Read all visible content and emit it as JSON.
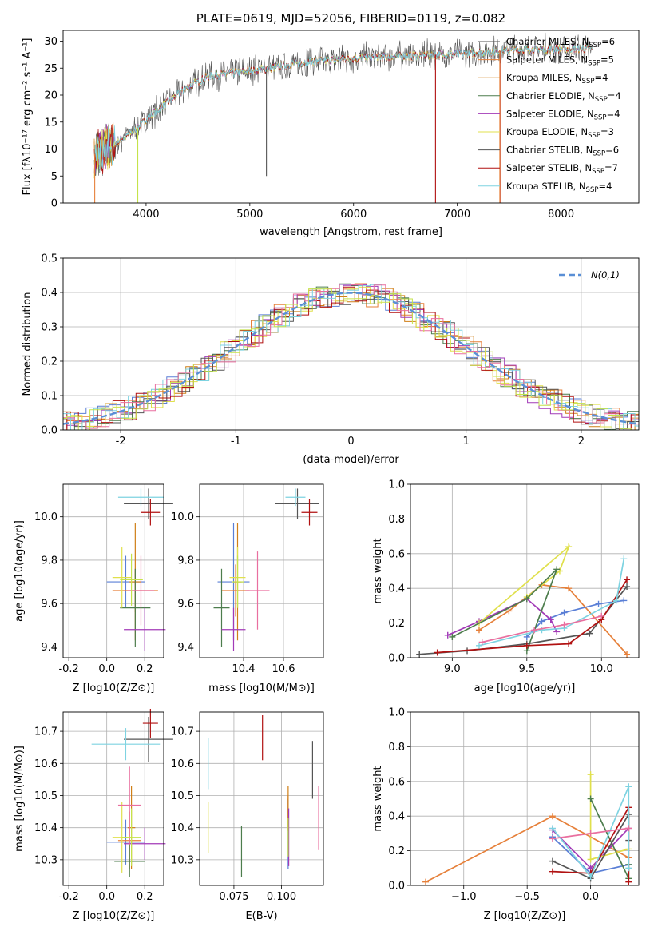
{
  "colors": [
    "#5a7fd6",
    "#e6803a",
    "#d07f17",
    "#4d7d4d",
    "#a23ab7",
    "#e0e04c",
    "#555555",
    "#b11111",
    "#7ed3e1",
    "#e96f9f",
    "#c5e34a"
  ],
  "chart_data": [
    {
      "type": "line",
      "title": "PLATE=0619, MJD=52056, FIBERID=0119, z=0.082",
      "xlabel": "wavelength [Angstrom, rest frame]",
      "ylabel": "Flux [fλ10⁻¹⁷ erg cm⁻² s⁻¹ A⁻¹]",
      "xlim": [
        3200,
        8750
      ],
      "ylim": [
        0,
        32
      ],
      "xticks": [
        4000,
        5000,
        6000,
        7000,
        8000
      ],
      "yticks": [
        0,
        5,
        10,
        15,
        20,
        25,
        30
      ],
      "legend_position": "top-right",
      "legend": [
        "Chabrier MILES, N_SSP=6",
        "Salpeter MILES, N_SSP=5",
        "Kroupa MILES, N_SSP=4",
        "Chabrier ELODIE, N_SSP=4",
        "Salpeter ELODIE, N_SSP=4",
        "Kroupa ELODIE, N_SSP=3",
        "Chabrier STELIB, N_SSP=6",
        "Salpeter STELIB, N_SSP=7",
        "Kroupa STELIB, N_SSP=4"
      ],
      "legend_parts": [
        {
          "pre": "Chabrier MILES, N",
          "sub": "SSP",
          "post": "=6"
        },
        {
          "pre": "Salpeter MILES, N",
          "sub": "SSP",
          "post": "=5"
        },
        {
          "pre": "Kroupa MILES, N",
          "sub": "SSP",
          "post": "=4"
        },
        {
          "pre": "Chabrier ELODIE, N",
          "sub": "SSP",
          "post": "=4"
        },
        {
          "pre": "Salpeter ELODIE, N",
          "sub": "SSP",
          "post": "=4"
        },
        {
          "pre": "Kroupa ELODIE, N",
          "sub": "SSP",
          "post": "=3"
        },
        {
          "pre": "Chabrier STELIB, N",
          "sub": "SSP",
          "post": "=6"
        },
        {
          "pre": "Salpeter STELIB, N",
          "sub": "SSP",
          "post": "=7"
        },
        {
          "pre": "Kroupa STELIB, N",
          "sub": "SSP",
          "post": "=4"
        }
      ],
      "legend_colors": [
        "#555555",
        "#e6803a",
        "#d07f17",
        "#4d7d4d",
        "#a23ab7",
        "#e0e04c",
        "#555555",
        "#b11111",
        "#7ed3e1"
      ],
      "continuum": {
        "x": [
          3500,
          3700,
          3900,
          4000,
          4200,
          4400,
          4600,
          4800,
          5000,
          5200,
          5400,
          5600,
          5800,
          6000,
          6200,
          6400,
          6600,
          6800,
          7000,
          7200,
          7400,
          7600,
          7800,
          8000,
          8200,
          8300
        ],
        "y": [
          9,
          11,
          13.5,
          15.5,
          18.5,
          21.5,
          23.5,
          24,
          24.5,
          25,
          25.8,
          26.3,
          26.5,
          26.8,
          27,
          27.2,
          27.3,
          27.5,
          27.6,
          27.9,
          28.2,
          28.4,
          28.5,
          28.6,
          28.6,
          28.6
        ]
      }
    },
    {
      "type": "line",
      "xlabel": "(data-model)/error",
      "ylabel": "Normed distribution",
      "xlim": [
        -2.5,
        2.5
      ],
      "ylim": [
        0,
        0.5
      ],
      "xticks": [
        -2,
        -1,
        0,
        1,
        2
      ],
      "yticks": [
        0.0,
        0.1,
        0.2,
        0.3,
        0.4,
        0.5
      ],
      "legend": [
        "N(0,1)"
      ],
      "legend_position": "top-right",
      "histogram_bin_width": 0.1
    },
    {
      "type": "scatter",
      "xlabel": "Z [log10(Z/Z⊙)]",
      "ylabel": "age [log10(age/yr)]",
      "xlim": [
        -0.23,
        0.3
      ],
      "ylim": [
        9.35,
        10.15
      ],
      "xticks": [
        -0.2,
        0.0,
        0.2
      ],
      "yticks": [
        9.4,
        9.6,
        9.8,
        10.0
      ],
      "points": [
        {
          "x": 0.1,
          "y": 9.7,
          "xerr": 0.1,
          "yerr": 0.12,
          "color": 0
        },
        {
          "x": 0.15,
          "y": 9.66,
          "xerr": 0.12,
          "yerr": 0.1,
          "color": 1
        },
        {
          "x": 0.15,
          "y": 9.7,
          "xerr": 0.03,
          "yerr": 0.27,
          "color": 2
        },
        {
          "x": 0.15,
          "y": 9.58,
          "xerr": 0.08,
          "yerr": 0.18,
          "color": 3
        },
        {
          "x": 0.2,
          "y": 9.48,
          "xerr": 0.11,
          "yerr": 0.1,
          "color": 4
        },
        {
          "x": 0.08,
          "y": 9.72,
          "xerr": 0.05,
          "yerr": 0.14,
          "color": 5
        },
        {
          "x": 0.22,
          "y": 10.06,
          "xerr": 0.13,
          "yerr": 0.07,
          "color": 6
        },
        {
          "x": 0.23,
          "y": 10.02,
          "xerr": 0.05,
          "yerr": 0.06,
          "color": 7
        },
        {
          "x": 0.18,
          "y": 10.09,
          "xerr": 0.12,
          "yerr": 0.04,
          "color": 8
        },
        {
          "x": 0.18,
          "y": 9.66,
          "xerr": 0.07,
          "yerr": 0.16,
          "color": 9
        },
        {
          "x": 0.13,
          "y": 9.71,
          "xerr": 0.06,
          "yerr": 0.12,
          "color": 10
        }
      ]
    },
    {
      "type": "scatter",
      "xlabel": "mass [log10(M/M⊙)]",
      "ylabel": "",
      "xlim": [
        10.18,
        10.8
      ],
      "ylim": [
        9.35,
        10.15
      ],
      "xticks": [
        10.4,
        10.6
      ],
      "yticks": [
        9.4,
        9.6,
        9.8,
        10.0
      ],
      "points": [
        {
          "x": 10.35,
          "y": 9.7,
          "xerr": 0.08,
          "yerr": 0.27,
          "color": 0
        },
        {
          "x": 10.36,
          "y": 9.66,
          "xerr": 0.07,
          "yerr": 0.12,
          "color": 1
        },
        {
          "x": 10.37,
          "y": 9.7,
          "xerr": 0.02,
          "yerr": 0.27,
          "color": 2
        },
        {
          "x": 10.29,
          "y": 9.58,
          "xerr": 0.04,
          "yerr": 0.18,
          "color": 3
        },
        {
          "x": 10.35,
          "y": 9.48,
          "xerr": 0.06,
          "yerr": 0.1,
          "color": 4
        },
        {
          "x": 10.37,
          "y": 9.72,
          "xerr": 0.04,
          "yerr": 0.14,
          "color": 5
        },
        {
          "x": 10.67,
          "y": 10.06,
          "xerr": 0.11,
          "yerr": 0.07,
          "color": 6
        },
        {
          "x": 10.73,
          "y": 10.02,
          "xerr": 0.04,
          "yerr": 0.06,
          "color": 7
        },
        {
          "x": 10.66,
          "y": 10.09,
          "xerr": 0.05,
          "yerr": 0.04,
          "color": 8
        },
        {
          "x": 10.47,
          "y": 9.66,
          "xerr": 0.06,
          "yerr": 0.18,
          "color": 9
        },
        {
          "x": 10.37,
          "y": 9.7,
          "xerr": 0.03,
          "yerr": 0.12,
          "color": 10
        }
      ]
    },
    {
      "type": "line",
      "xlabel": "age  [log10(age/yr)]",
      "ylabel": "mass weight",
      "xlim": [
        8.72,
        10.25
      ],
      "ylim": [
        0.0,
        1.0
      ],
      "xticks": [
        9.0,
        9.5,
        10.0
      ],
      "yticks": [
        0.0,
        0.2,
        0.4,
        0.6,
        0.8,
        1.0
      ],
      "series": [
        {
          "color": 1,
          "x": [
            9.18,
            9.38,
            9.6,
            9.78,
            10.17
          ],
          "y": [
            0.16,
            0.27,
            0.42,
            0.4,
            0.02
          ]
        },
        {
          "color": 0,
          "x": [
            9.5,
            9.6,
            9.75,
            9.98,
            10.15
          ],
          "y": [
            0.12,
            0.21,
            0.26,
            0.31,
            0.33
          ]
        },
        {
          "color": 4,
          "x": [
            8.97,
            9.18,
            9.5,
            9.66,
            9.7
          ],
          "y": [
            0.13,
            0.21,
            0.34,
            0.22,
            0.15
          ]
        },
        {
          "color": 5,
          "x": [
            9.18,
            9.78,
            9.72,
            9.5
          ],
          "y": [
            0.2,
            0.64,
            0.5,
            0.35
          ]
        },
        {
          "color": 3,
          "x": [
            9.0,
            9.5,
            9.7,
            9.5
          ],
          "y": [
            0.12,
            0.34,
            0.51,
            0.04
          ]
        },
        {
          "color": 6,
          "x": [
            8.78,
            9.1,
            9.5,
            9.92,
            10.17
          ],
          "y": [
            0.02,
            0.04,
            0.08,
            0.14,
            0.41
          ]
        },
        {
          "color": 7,
          "x": [
            8.9,
            9.5,
            9.78,
            10.0,
            10.17
          ],
          "y": [
            0.03,
            0.07,
            0.08,
            0.22,
            0.45
          ]
        },
        {
          "color": 8,
          "x": [
            9.18,
            9.6,
            9.75,
            10.1,
            10.15
          ],
          "y": [
            0.07,
            0.16,
            0.17,
            0.33,
            0.57
          ]
        },
        {
          "color": 9,
          "x": [
            9.2,
            9.55,
            9.75,
            10.0
          ],
          "y": [
            0.09,
            0.16,
            0.19,
            0.24
          ]
        }
      ]
    },
    {
      "type": "scatter",
      "xlabel": "Z [log10(Z/Z⊙)]",
      "ylabel": "mass [log10(M/M⊙)]",
      "xlim": [
        -0.23,
        0.3
      ],
      "ylim": [
        10.22,
        10.76
      ],
      "xticks": [
        -0.2,
        0.0,
        0.2
      ],
      "yticks": [
        10.3,
        10.4,
        10.5,
        10.6,
        10.7
      ],
      "points": [
        {
          "x": 0.1,
          "y": 10.355,
          "xerr": 0.1,
          "yerr": 0.07,
          "color": 0
        },
        {
          "x": 0.12,
          "y": 10.36,
          "xerr": 0.06,
          "yerr": 0.09,
          "color": 1
        },
        {
          "x": 0.13,
          "y": 10.4,
          "xerr": 0.02,
          "yerr": 0.13,
          "color": 2
        },
        {
          "x": 0.12,
          "y": 10.295,
          "xerr": 0.08,
          "yerr": 0.05,
          "color": 3
        },
        {
          "x": 0.2,
          "y": 10.35,
          "xerr": 0.11,
          "yerr": 0.05,
          "color": 4
        },
        {
          "x": 0.08,
          "y": 10.37,
          "xerr": 0.05,
          "yerr": 0.11,
          "color": 5
        },
        {
          "x": 0.22,
          "y": 10.675,
          "xerr": 0.13,
          "yerr": 0.07,
          "color": 6
        },
        {
          "x": 0.23,
          "y": 10.725,
          "xerr": 0.04,
          "yerr": 0.045,
          "color": 7
        },
        {
          "x": 0.1,
          "y": 10.66,
          "xerr": 0.18,
          "yerr": 0.05,
          "color": 8
        },
        {
          "x": 0.12,
          "y": 10.47,
          "xerr": 0.06,
          "yerr": 0.12,
          "color": 9
        },
        {
          "x": 0.13,
          "y": 10.37,
          "xerr": 0.05,
          "yerr": 0.09,
          "color": 10
        }
      ]
    },
    {
      "type": "scatter",
      "xlabel": "E(B-V)",
      "ylabel": "",
      "xlim": [
        0.057,
        0.122
      ],
      "ylim": [
        10.22,
        10.76
      ],
      "xticks": [
        0.075,
        0.1
      ],
      "yticks": [
        10.3,
        10.4,
        10.5,
        10.6,
        10.7
      ],
      "points": [
        {
          "x": 0.1035,
          "y": 10.38,
          "yerr": 0.11,
          "color": 0
        },
        {
          "x": 0.1035,
          "y": 10.45,
          "yerr": 0.05,
          "color": 1
        },
        {
          "x": 0.1035,
          "y": 10.46,
          "yerr": 0.07,
          "color": 2
        },
        {
          "x": 0.079,
          "y": 10.325,
          "yerr": 0.08,
          "color": 3
        },
        {
          "x": 0.1038,
          "y": 10.37,
          "yerr": 0.09,
          "color": 4
        },
        {
          "x": 0.0615,
          "y": 10.4,
          "yerr": 0.08,
          "color": 5
        },
        {
          "x": 0.1163,
          "y": 10.58,
          "yerr": 0.09,
          "color": 6
        },
        {
          "x": 0.09,
          "y": 10.68,
          "yerr": 0.07,
          "color": 7
        },
        {
          "x": 0.0615,
          "y": 10.6,
          "yerr": 0.08,
          "color": 8
        },
        {
          "x": 0.1195,
          "y": 10.43,
          "yerr": 0.1,
          "color": 9
        },
        {
          "x": 0.1035,
          "y": 10.37,
          "yerr": 0.06,
          "color": 10
        }
      ]
    },
    {
      "type": "line",
      "xlabel": "Z [log10(Z/Z⊙)]",
      "ylabel": "mass weight",
      "xlim": [
        -1.42,
        0.38
      ],
      "ylim": [
        0.0,
        1.0
      ],
      "xticks": [
        -1.0,
        -0.5,
        0.0
      ],
      "yticks": [
        0.0,
        0.2,
        0.4,
        0.6,
        0.8,
        1.0
      ],
      "series": [
        {
          "color": 1,
          "x": [
            -1.3,
            -0.3,
            0.3
          ],
          "y": [
            0.02,
            0.4,
            0.16
          ]
        },
        {
          "color": 0,
          "x": [
            -0.3,
            0.0,
            0.3
          ],
          "y": [
            0.28,
            0.07,
            0.12
          ]
        },
        {
          "color": 4,
          "x": [
            -0.3,
            0.0,
            0.3
          ],
          "y": [
            0.32,
            0.1,
            0.33
          ]
        },
        {
          "color": 5,
          "x": [
            0.0,
            0.0,
            0.3
          ],
          "y": [
            0.64,
            0.15,
            0.21
          ]
        },
        {
          "color": 3,
          "x": [
            0.0,
            0.3,
            0.3
          ],
          "y": [
            0.5,
            0.04,
            0.12
          ]
        },
        {
          "color": 6,
          "x": [
            -0.3,
            0.0,
            0.3,
            0.3
          ],
          "y": [
            0.14,
            0.04,
            0.41,
            0.26
          ]
        },
        {
          "color": 7,
          "x": [
            -0.3,
            0.0,
            0.3,
            0.3
          ],
          "y": [
            0.08,
            0.07,
            0.45,
            0.02
          ]
        },
        {
          "color": 8,
          "x": [
            -0.3,
            0.0,
            0.3,
            0.3
          ],
          "y": [
            0.33,
            0.05,
            0.57,
            0.1
          ]
        },
        {
          "color": 9,
          "x": [
            -0.3,
            0.0,
            0.3
          ],
          "y": [
            0.27,
            0.3,
            0.33
          ]
        }
      ]
    }
  ]
}
